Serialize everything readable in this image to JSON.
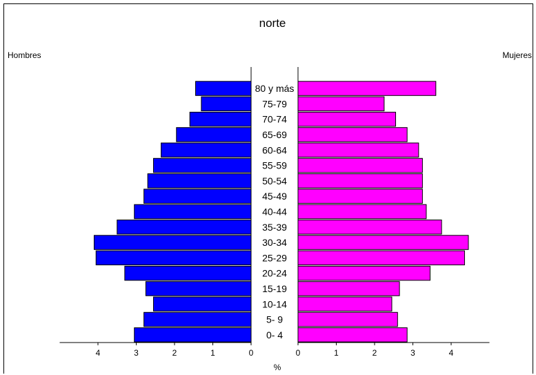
{
  "chart_data": {
    "type": "bar",
    "subtype": "population-pyramid",
    "title": "norte",
    "left_label": "Hombres",
    "right_label": "Mujeres",
    "xlabel": "%",
    "categories": [
      "0- 4",
      "5- 9",
      "10-14",
      "15-19",
      "20-24",
      "25-29",
      "30-34",
      "35-39",
      "40-44",
      "45-49",
      "50-54",
      "55-59",
      "60-64",
      "65-69",
      "70-74",
      "75-79",
      "80 y más"
    ],
    "series": [
      {
        "name": "Hombres",
        "color": "#0000ff",
        "values": [
          3.05,
          2.8,
          2.55,
          2.75,
          3.3,
          4.05,
          4.1,
          3.5,
          3.05,
          2.8,
          2.7,
          2.55,
          2.35,
          1.95,
          1.6,
          1.3,
          1.45
        ]
      },
      {
        "name": "Mujeres",
        "color": "#ff00ff",
        "values": [
          2.85,
          2.6,
          2.45,
          2.65,
          3.45,
          4.35,
          4.45,
          3.75,
          3.35,
          3.25,
          3.25,
          3.25,
          3.15,
          2.85,
          2.55,
          2.25,
          3.6
        ]
      }
    ],
    "x_ticks_left": [
      "4",
      "3",
      "2",
      "1",
      "0"
    ],
    "x_ticks_right": [
      "0",
      "1",
      "2",
      "3",
      "4"
    ],
    "xlim": [
      0,
      5
    ],
    "grid": false,
    "legend": "none"
  }
}
